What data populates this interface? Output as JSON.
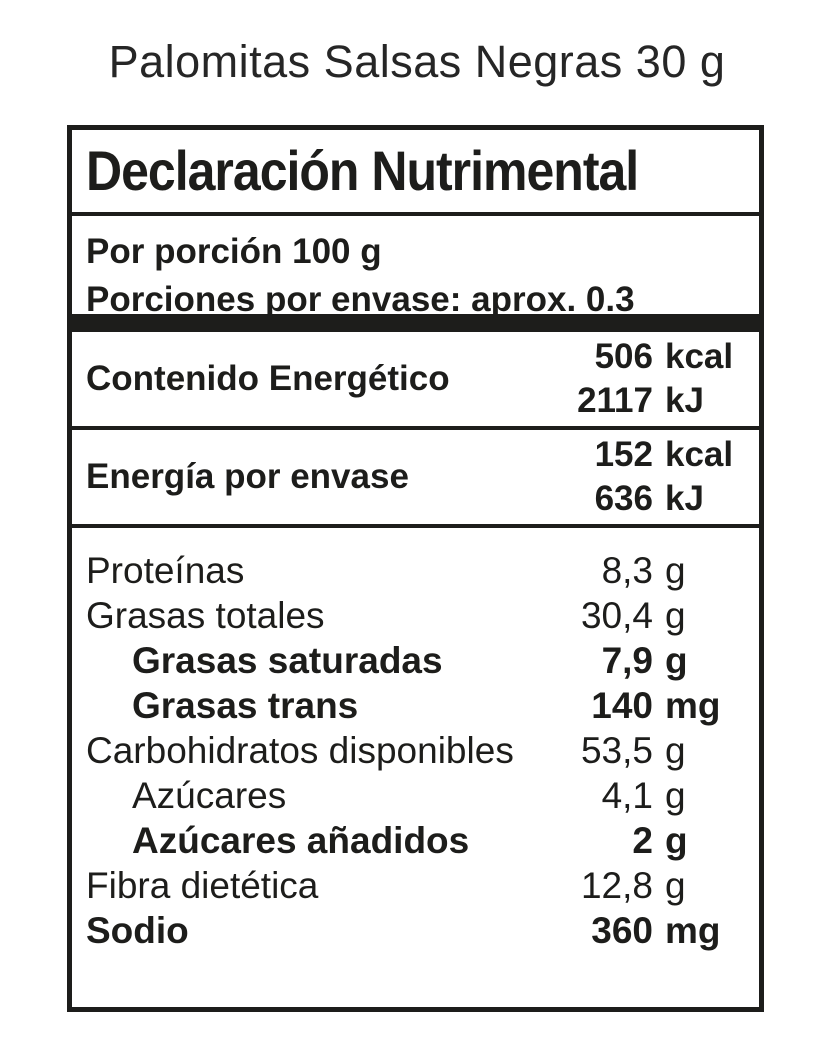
{
  "page_title": "Palomitas Salsas Negras 30 g",
  "label": {
    "header": "Declaración Nutrimental",
    "serving": {
      "line1": "Por porción 100 g",
      "line2": "Porciones por envase: aprox. 0.3"
    },
    "energy_rows": [
      {
        "label": "Contenido Energético",
        "values": [
          {
            "num": "506",
            "unit": "kcal"
          },
          {
            "num": "2117",
            "unit": "kJ"
          }
        ]
      },
      {
        "label": "Energía por envase",
        "values": [
          {
            "num": "152",
            "unit": "kcal"
          },
          {
            "num": "636",
            "unit": "kJ"
          }
        ]
      }
    ],
    "nutrients": [
      {
        "name": "Proteínas",
        "num": "8,3",
        "unit": "g"
      },
      {
        "name": "Grasas totales",
        "num": "30,4",
        "unit": "g"
      },
      {
        "name": "Grasas saturadas",
        "num": "7,9",
        "unit": "g"
      },
      {
        "name": "Grasas trans",
        "num": "140",
        "unit": "mg"
      },
      {
        "name": "Carbohidratos disponibles",
        "num": "53,5",
        "unit": "g"
      },
      {
        "name": "Azúcares",
        "num": "4,1",
        "unit": "g"
      },
      {
        "name": "Azúcares añadidos",
        "num": "2",
        "unit": "g"
      },
      {
        "name": "Fibra dietética",
        "num": "12,8",
        "unit": "g"
      },
      {
        "name": "Sodio",
        "num": "360",
        "unit": "mg"
      }
    ],
    "colors": {
      "border": "#1d1d1b",
      "text": "#1d1d1b",
      "background": "#ffffff"
    }
  }
}
